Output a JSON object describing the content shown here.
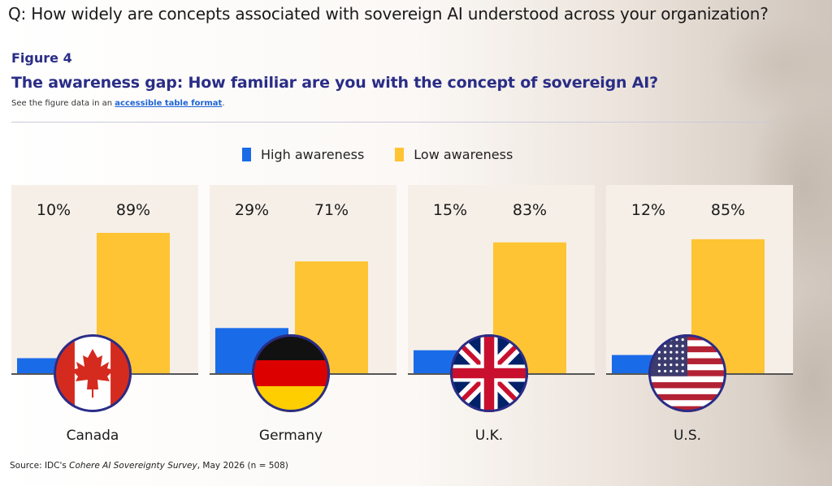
{
  "header": {
    "question": "Q: How widely are concepts associated with sovereign AI understood across your organization?",
    "figure_label": "Figure 4",
    "figure_title": "The awareness gap: How familiar are you with the concept of sovereign AI?",
    "note_prefix": "See the figure data in an ",
    "note_link": "accessible table format",
    "note_suffix": "."
  },
  "footer": {
    "source_prefix": "Source: IDC's ",
    "source_italic": "Cohere AI Sovereignty Survey",
    "source_suffix": ", May 2026 (n = 508)"
  },
  "colors": {
    "high": "#1a6be8",
    "low": "#fec433",
    "panel": "#f6efe8",
    "title": "#2a2d86",
    "baseline": "#555555"
  },
  "chart_data": {
    "type": "bar",
    "title": "The awareness gap: How familiar are you with the concept of sovereign AI?",
    "legend_position": "top-center",
    "ylim": [
      0,
      100
    ],
    "grid": false,
    "categories": [
      "Canada",
      "Germany",
      "U.K.",
      "U.S."
    ],
    "flag_icons": [
      "canada-flag-icon",
      "germany-flag-icon",
      "uk-flag-icon",
      "us-flag-icon"
    ],
    "series": [
      {
        "name": "High awareness",
        "values": [
          10,
          29,
          15,
          12
        ],
        "labels": [
          "10%",
          "29%",
          "15%",
          "12%"
        ]
      },
      {
        "name": "Low awareness",
        "values": [
          89,
          71,
          83,
          85
        ],
        "labels": [
          "89%",
          "71%",
          "83%",
          "85%"
        ]
      }
    ]
  }
}
